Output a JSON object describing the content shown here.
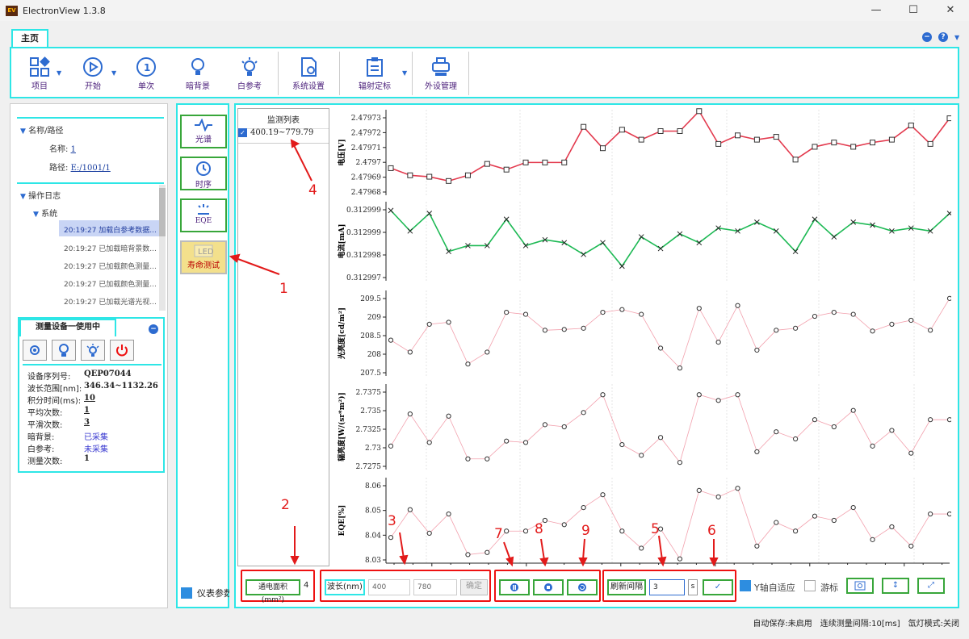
{
  "window": {
    "logo": "EV",
    "title": "ElectronView 1.3.8",
    "min": "—",
    "max": "☐",
    "close": "✕"
  },
  "tabs": {
    "home": "主页"
  },
  "ribbon": {
    "items": [
      {
        "label": "项目",
        "icon": "grid-icon"
      },
      {
        "label": "开始",
        "icon": "play-icon"
      },
      {
        "label": "单次",
        "icon": "single-icon"
      },
      {
        "label": "暗背景",
        "icon": "bulb-icon"
      },
      {
        "label": "白参考",
        "icon": "bulb-bright-icon"
      },
      {
        "label": "系统设置",
        "icon": "settings-doc-icon"
      },
      {
        "label": "辐射定标",
        "icon": "clipboard-icon"
      },
      {
        "label": "外设管理",
        "icon": "device-icon"
      }
    ],
    "minus": "−",
    "help": "?"
  },
  "tree": {
    "name_path": "名称/路径",
    "name_label": "名称:",
    "name_value": "1",
    "path_label": "路径:",
    "path_value": "E:/1001/1",
    "oplog": "操作日志",
    "system": "系统",
    "logs": [
      "20:19:27 加载白参考数据...",
      "20:19:27 已加载暗背景数...",
      "20:19:27 已加载颜色测量...",
      "20:19:27 已加载颜色测量...",
      "20:19:27 已加载光谱光视..."
    ]
  },
  "device": {
    "tab": "测量设备一使用中",
    "fields": [
      {
        "k": "设备序列号:",
        "v": "QEP07044"
      },
      {
        "k": "波长范围[nm]:",
        "v": "346.34~1132.26"
      },
      {
        "k": "积分时间(ms):",
        "v": "10"
      },
      {
        "k": "平均次数:",
        "v": "1"
      },
      {
        "k": "平滑次数:",
        "v": "3"
      },
      {
        "k": "暗背景:",
        "v": "已采集"
      },
      {
        "k": "白参考:",
        "v": "未采集"
      },
      {
        "k": "测量次数:",
        "v": "1"
      }
    ]
  },
  "modes": {
    "spectrum": "光谱",
    "timing": "时序",
    "eqe": "EQE",
    "life": "寿命测试",
    "led": "LED",
    "meter_param": "仪表参数"
  },
  "monitor": {
    "title": "监测列表",
    "item": "400.19~779.79"
  },
  "controls": {
    "area_label": "通电面积(mm²)",
    "area_value": "4",
    "wave_label": "波长(nm)",
    "wave_min": "400",
    "wave_max": "780",
    "confirm": "确定",
    "refresh_label": "刷新间隔",
    "refresh_value": "3",
    "unit": "s",
    "auto_y": "Y轴自适应",
    "cursor": "游标"
  },
  "status": {
    "autosave": "自动保存:未启用",
    "interval": "连续测量间隔:10[ms]",
    "lamp": "氙灯模式:关闭"
  },
  "annotations": [
    "1",
    "2",
    "3",
    "4",
    "5",
    "6",
    "7",
    "8",
    "9"
  ],
  "chart_data": [
    {
      "type": "line",
      "ylabel": "电压[V]",
      "yticks": [
        "2.47973",
        "2.47972",
        "2.47971",
        "2.4797",
        "2.47969",
        "2.47968"
      ],
      "ylim": [
        2.479675,
        2.479735
      ],
      "color": "#e33a4e",
      "marker": "square",
      "values": [
        2.479694,
        2.479689,
        2.479688,
        2.479685,
        2.479689,
        2.479697,
        2.479693,
        2.479698,
        2.479698,
        2.479698,
        2.479723,
        2.479708,
        2.479721,
        2.479714,
        2.47972,
        2.47972,
        2.479734,
        2.479711,
        2.479717,
        2.479714,
        2.479716,
        2.4797,
        2.479709,
        2.479712,
        2.479709,
        2.479712,
        2.479714,
        2.479724,
        2.479711,
        2.479729
      ]
    },
    {
      "type": "line",
      "ylabel": "电流[mA]",
      "yticks": [
        "0.312999",
        "0.312999",
        "0.312998",
        "0.312997"
      ],
      "ylim": [
        0.3129966,
        0.3129993
      ],
      "color": "#1db954",
      "marker": "x",
      "values": [
        0.312999,
        0.3129983,
        0.3129989,
        0.3129976,
        0.3129978,
        0.3129978,
        0.3129987,
        0.3129978,
        0.312998,
        0.3129979,
        0.3129975,
        0.3129979,
        0.3129971,
        0.3129981,
        0.3129977,
        0.3129982,
        0.3129979,
        0.3129984,
        0.3129983,
        0.3129986,
        0.3129983,
        0.3129976,
        0.3129987,
        0.3129981,
        0.3129986,
        0.3129985,
        0.3129983,
        0.3129984,
        0.3129983,
        0.3129989
      ]
    },
    {
      "type": "line",
      "ylabel": "光亮度[cd/m²]",
      "yticks": [
        "209.5",
        "209",
        "208.5",
        "208",
        "207.5"
      ],
      "ylim": [
        207.45,
        209.6
      ],
      "color": "#f2a0ad",
      "marker": "circle",
      "values": [
        208.35,
        208.05,
        208.75,
        208.8,
        207.75,
        208.05,
        209.05,
        209.0,
        208.6,
        208.62,
        208.65,
        209.05,
        209.12,
        209.0,
        208.15,
        207.65,
        209.15,
        208.3,
        209.22,
        208.1,
        208.6,
        208.65,
        208.95,
        209.05,
        209.0,
        208.58,
        208.75,
        208.85,
        208.6,
        209.4
      ]
    },
    {
      "type": "line",
      "ylabel": "辐亮度[W/(sr*m²)]",
      "yticks": [
        "2.7375",
        "2.735",
        "2.7325",
        "2.73",
        "2.7275"
      ],
      "ylim": [
        2.7265,
        2.7385
      ],
      "color": "#f2a0ad",
      "marker": "circle",
      "values": [
        2.7298,
        2.7343,
        2.7303,
        2.734,
        2.728,
        2.728,
        2.7305,
        2.7303,
        2.7328,
        2.7325,
        2.7345,
        2.737,
        2.73,
        2.7285,
        2.731,
        2.7275,
        2.737,
        2.7362,
        2.737,
        2.729,
        2.7318,
        2.7308,
        2.7335,
        2.7325,
        2.7348,
        2.7298,
        2.732,
        2.7288,
        2.7335,
        2.7335
      ]
    },
    {
      "type": "line",
      "ylabel": "EQE[%]",
      "yticks": [
        "8.06",
        "8.05",
        "8.04",
        "8.03"
      ],
      "ylim": [
        8.026,
        8.066
      ],
      "color": "#f2a0ad",
      "marker": "circle",
      "values": [
        8.038,
        8.051,
        8.04,
        8.049,
        8.03,
        8.031,
        8.041,
        8.041,
        8.046,
        8.044,
        8.052,
        8.058,
        8.041,
        8.033,
        8.042,
        8.028,
        8.06,
        8.057,
        8.061,
        8.034,
        8.045,
        8.041,
        8.048,
        8.046,
        8.052,
        8.037,
        8.043,
        8.034,
        8.049,
        8.049
      ]
    }
  ]
}
